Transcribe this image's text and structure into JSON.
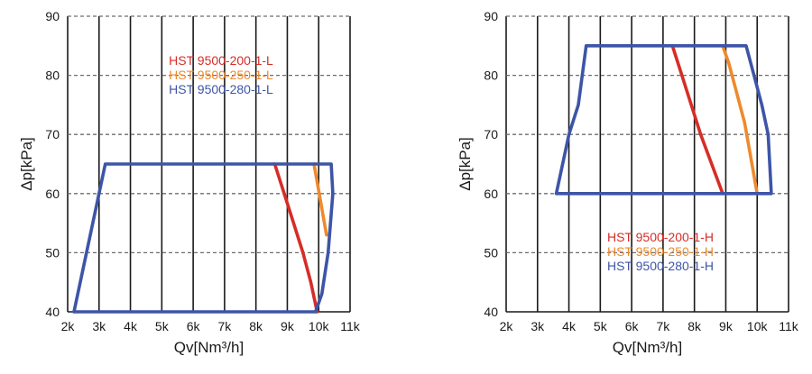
{
  "chart_data": [
    {
      "type": "line",
      "title": "",
      "xlabel": "Qv[Nm³/h]",
      "ylabel": "Δp[kPa]",
      "xlim": [
        2000,
        11000
      ],
      "ylim": [
        40,
        90
      ],
      "x_ticks": [
        2000,
        3000,
        4000,
        5000,
        6000,
        7000,
        8000,
        9000,
        10000,
        11000
      ],
      "x_tick_labels": [
        "2k",
        "3k",
        "4k",
        "5k",
        "6k",
        "7k",
        "8k",
        "9k",
        "10k",
        "11k"
      ],
      "y_ticks": [
        40,
        50,
        60,
        70,
        80,
        90
      ],
      "y_tick_labels": [
        "40",
        "50",
        "60",
        "70",
        "80",
        "90"
      ],
      "grid": {
        "x": "solid",
        "y": "dashed"
      },
      "legend": "top-center",
      "series": [
        {
          "name": "HST 9500-200-1-L",
          "color": "#d62d27",
          "x": [
            8600,
            8900,
            9200,
            9500,
            9750,
            9950
          ],
          "y": [
            65,
            60,
            55,
            50,
            45,
            40
          ]
        },
        {
          "name": "HST 9500-250-1-L",
          "color": "#ee8a2e",
          "x": [
            9850,
            9950,
            10050,
            10150,
            10250
          ],
          "y": [
            65,
            62,
            59,
            56,
            53
          ]
        },
        {
          "name": "HST 9500-280-1-L",
          "color": "#3d55a7",
          "x": [
            2200,
            3200,
            10400,
            10450,
            10300,
            10100,
            9900,
            2200
          ],
          "y": [
            40,
            65,
            65,
            60,
            50,
            43,
            40,
            40
          ]
        }
      ]
    },
    {
      "type": "line",
      "title": "",
      "xlabel": "Qv[Nm³/h]",
      "ylabel": "Δp[kPa]",
      "xlim": [
        2000,
        11000
      ],
      "ylim": [
        40,
        90
      ],
      "x_ticks": [
        2000,
        3000,
        4000,
        5000,
        6000,
        7000,
        8000,
        9000,
        10000,
        11000
      ],
      "x_tick_labels": [
        "2k",
        "3k",
        "4k",
        "5k",
        "6k",
        "7k",
        "8k",
        "9k",
        "10k",
        "11k"
      ],
      "y_ticks": [
        40,
        50,
        60,
        70,
        80,
        90
      ],
      "y_tick_labels": [
        "40",
        "50",
        "60",
        "70",
        "80",
        "90"
      ],
      "grid": {
        "x": "solid",
        "y": "dashed"
      },
      "legend": "bottom-right",
      "series": [
        {
          "name": "HST 9500-200-1-H",
          "color": "#d62d27",
          "x": [
            7300,
            7600,
            7900,
            8200,
            8550,
            8900
          ],
          "y": [
            85,
            80,
            75,
            70,
            65,
            60
          ]
        },
        {
          "name": "HST 9500-250-1-H",
          "color": "#ee8a2e",
          "x": [
            8900,
            9100,
            9350,
            9600,
            9800,
            10000
          ],
          "y": [
            85,
            82,
            77,
            72,
            66,
            60
          ]
        },
        {
          "name": "HST 9500-280-1-H",
          "color": "#3d55a7",
          "x": [
            3600,
            4000,
            4300,
            4550,
            9650,
            9900,
            10150,
            10350,
            10450,
            3600
          ],
          "y": [
            60,
            70,
            75,
            85,
            85,
            80,
            75,
            70,
            60,
            60
          ]
        }
      ]
    }
  ]
}
